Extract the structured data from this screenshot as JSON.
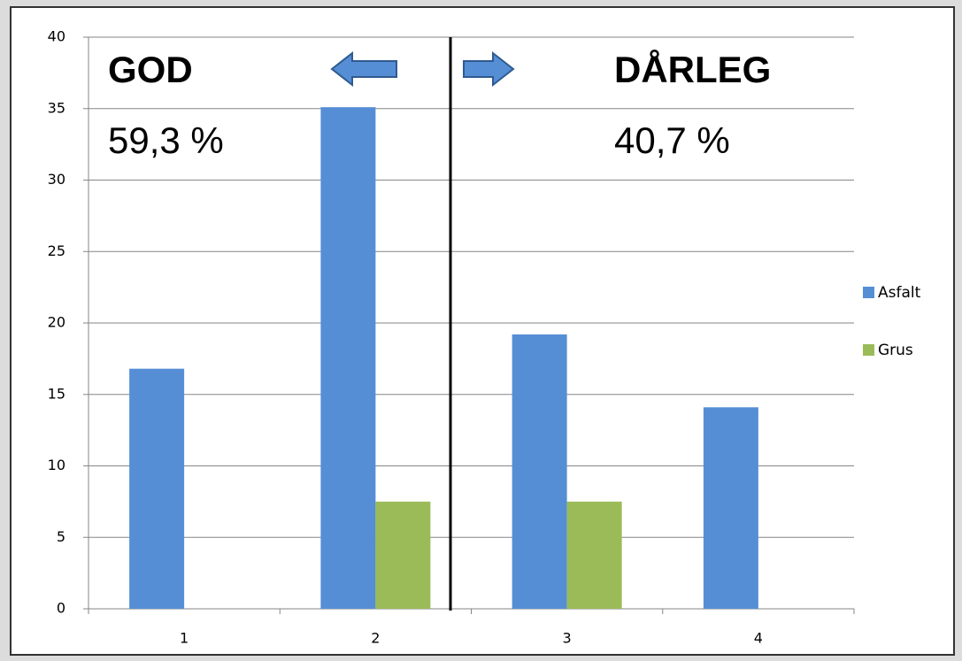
{
  "chart_data": {
    "type": "bar",
    "categories": [
      "1",
      "2",
      "3",
      "4"
    ],
    "series": [
      {
        "name": "Asfalt",
        "color": "#558ed5",
        "values": [
          16.8,
          35.1,
          19.2,
          14.1
        ]
      },
      {
        "name": "Grus",
        "color": "#9bbb59",
        "values": [
          0,
          7.5,
          7.5,
          0
        ]
      }
    ],
    "ylim": [
      0,
      40
    ],
    "yticks": [
      0,
      5,
      10,
      15,
      20,
      25,
      30,
      35,
      40
    ],
    "grid": true,
    "legend": "right",
    "annotations": [
      "GOD",
      "59,3 %",
      "DÅRLEG",
      "40,7 %"
    ]
  }
}
